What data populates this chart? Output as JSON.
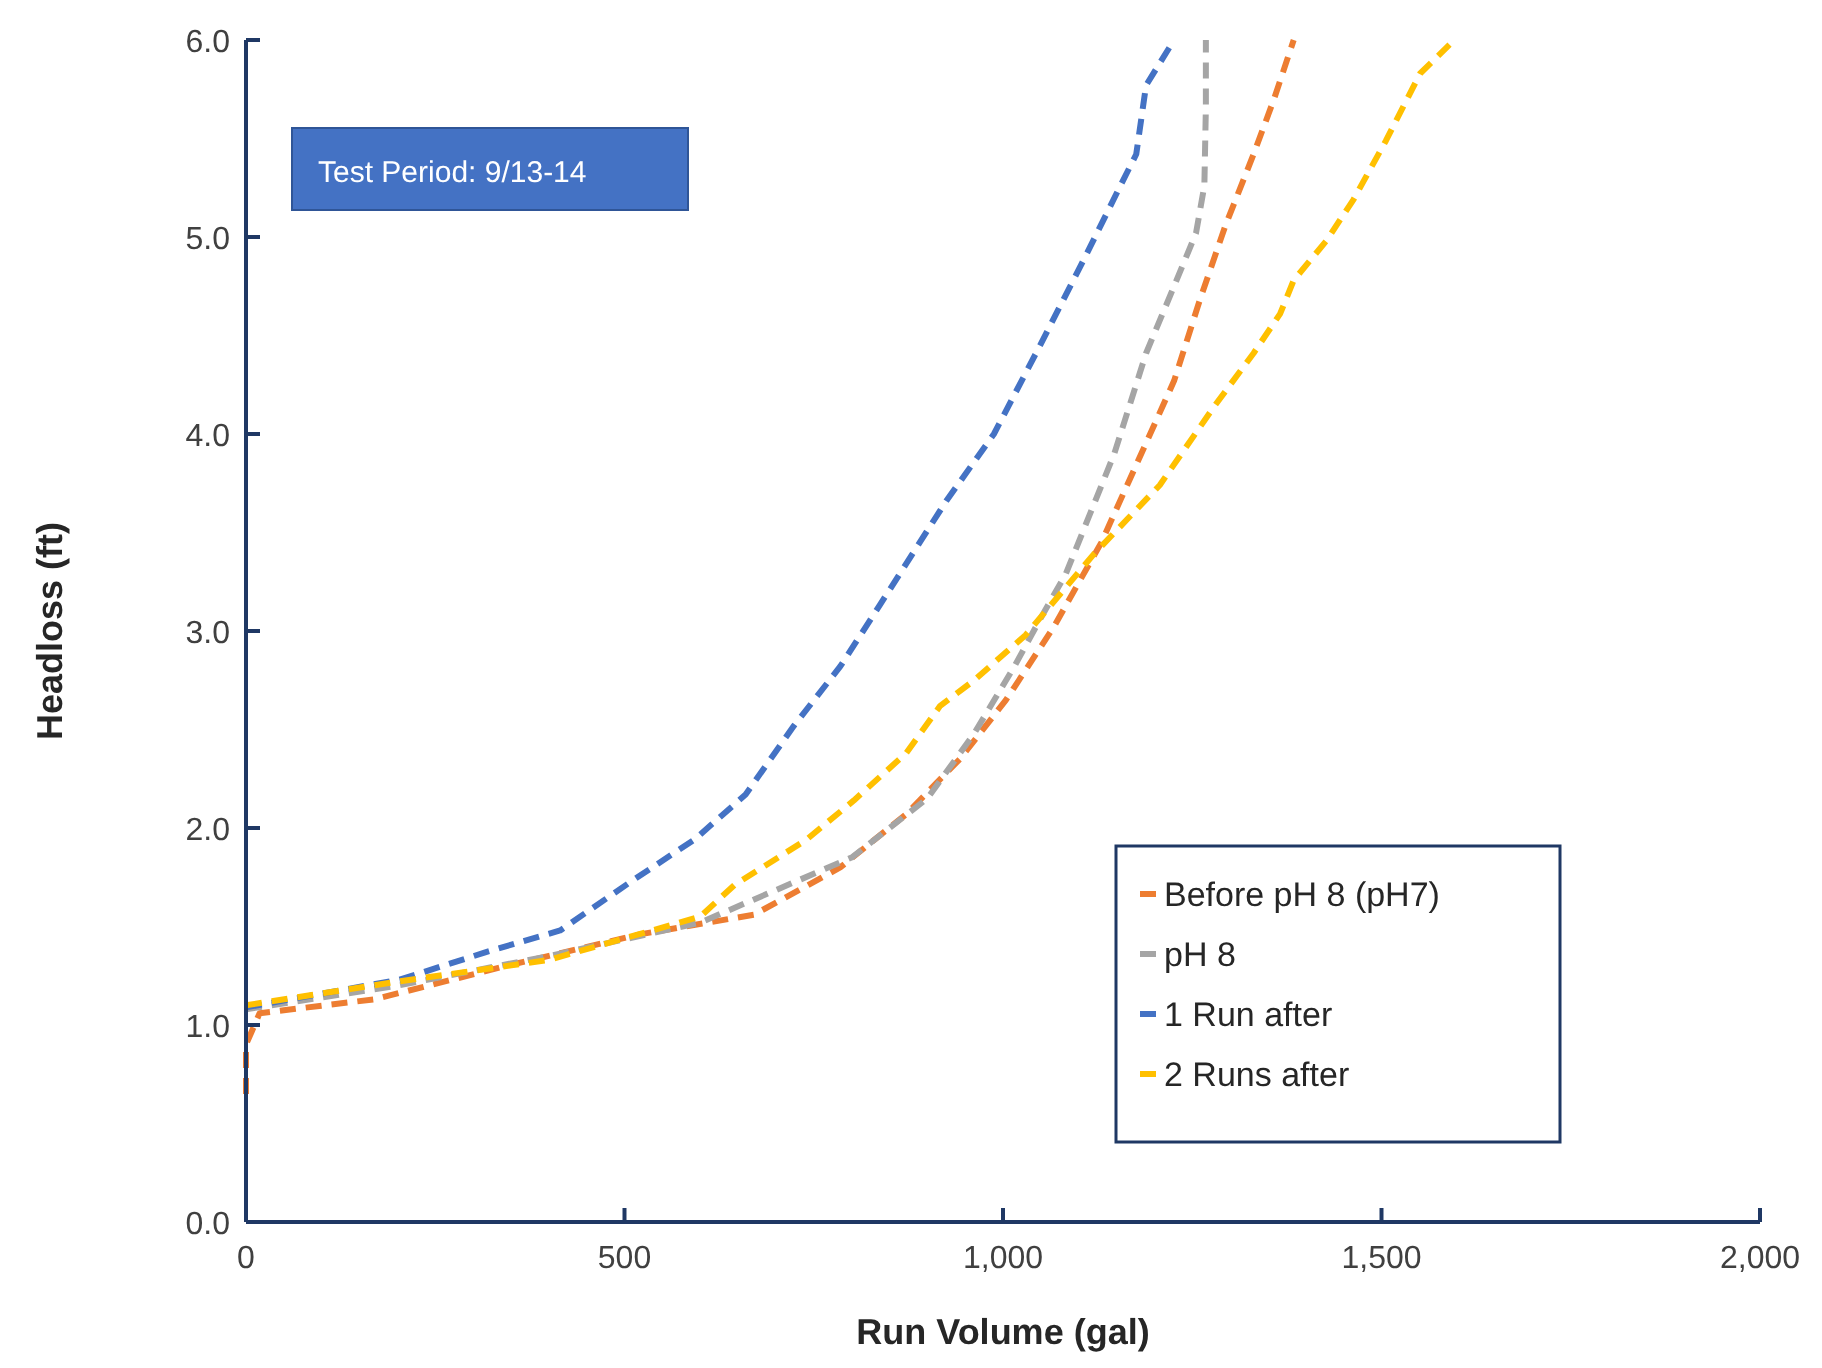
{
  "chart_data": {
    "type": "line",
    "xlabel": "Run Volume (gal)",
    "ylabel": "Headloss (ft)",
    "annotations": [
      "Test Period: 9/13-14"
    ],
    "xlim": [
      0,
      2000
    ],
    "xticks": [
      0,
      500,
      {
        "value": 1000,
        "label": "1,000"
      },
      {
        "value": 1500,
        "label": "1,500"
      },
      {
        "value": 2000,
        "label": "2,000"
      }
    ],
    "ylim": [
      0,
      6
    ],
    "yticks": [
      {
        "value": 0,
        "label": "0.0"
      },
      {
        "value": 1,
        "label": "1.0"
      },
      {
        "value": 2,
        "label": "2.0"
      },
      {
        "value": 3,
        "label": "3.0"
      },
      {
        "value": 4,
        "label": "4.0"
      },
      {
        "value": 5,
        "label": "5.0"
      },
      {
        "value": 6,
        "label": "6.0"
      }
    ],
    "grid": false,
    "legend": "bottom right",
    "marker": "none",
    "line_style": "dashed",
    "series": [
      {
        "name": "Before pH 8 (pH7)",
        "color": "#ed7d31",
        "x": [
          0,
          0,
          18,
          169,
          344,
          520,
          671,
          785,
          872,
          943,
          1004,
          1067,
          1130,
          1226,
          1260,
          1294,
          1331,
          1358,
          1384
        ],
        "values": [
          0.65,
          0.9,
          1.06,
          1.13,
          1.3,
          1.46,
          1.56,
          1.8,
          2.07,
          2.35,
          2.65,
          3.02,
          3.45,
          4.27,
          4.68,
          5.06,
          5.42,
          5.7,
          6.0
        ]
      },
      {
        "name": "pH 8",
        "color": "#a5a5a5",
        "x": [
          0,
          200,
          400,
          600,
          800,
          900,
          962,
          1015,
          1049,
          1083,
          1147,
          1189,
          1226,
          1255,
          1266,
          1268,
          1268
        ],
        "values": [
          1.08,
          1.2,
          1.35,
          1.52,
          1.85,
          2.15,
          2.48,
          2.82,
          3.06,
          3.29,
          3.9,
          4.41,
          4.75,
          5.02,
          5.26,
          5.66,
          6.0
        ]
      },
      {
        "name": "1 Run after",
        "color": "#4472c4",
        "x": [
          0,
          203,
          317,
          415,
          513,
          592,
          660,
          724,
          785,
          837,
          925,
          988,
          1049,
          1110,
          1155,
          1176,
          1189,
          1226
        ],
        "values": [
          1.09,
          1.23,
          1.37,
          1.48,
          1.74,
          1.94,
          2.17,
          2.52,
          2.82,
          3.13,
          3.66,
          4.0,
          4.45,
          4.91,
          5.26,
          5.42,
          5.77,
          6.0
        ]
      },
      {
        "name": "2 Runs after",
        "color": "#ffc000",
        "x": [
          0,
          200,
          400,
          600,
          645,
          740,
          803,
          872,
          917,
          962,
          1030,
          1120,
          1207,
          1279,
          1331,
          1366,
          1384,
          1427,
          1463,
          1506,
          1551,
          1596
        ],
        "values": [
          1.1,
          1.22,
          1.33,
          1.55,
          1.71,
          1.94,
          2.14,
          2.38,
          2.62,
          2.75,
          2.98,
          3.39,
          3.74,
          4.14,
          4.41,
          4.61,
          4.78,
          4.98,
          5.19,
          5.49,
          5.83,
          6.0
        ]
      }
    ]
  }
}
